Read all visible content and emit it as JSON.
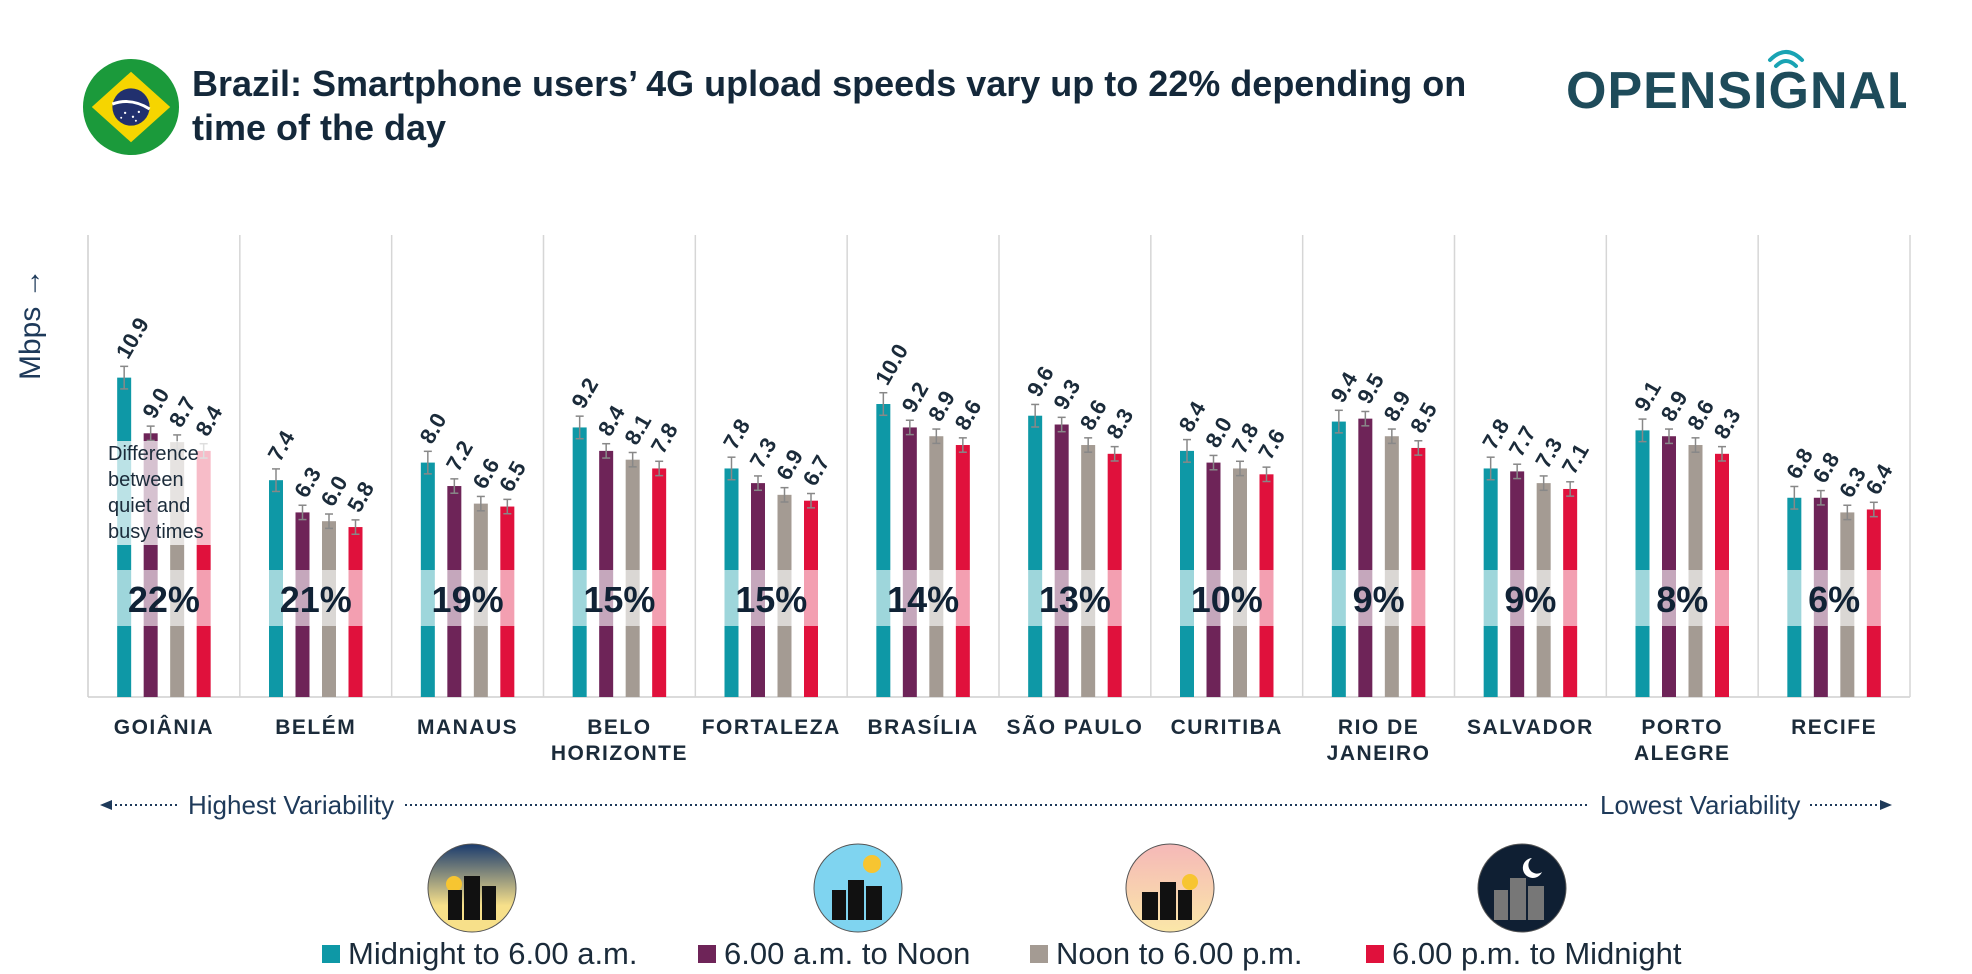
{
  "header": {
    "title": "Brazil: Smartphone users’ 4G upload speeds vary up to 22% depending on time of the day",
    "logo_text": "OPENSIGNAL"
  },
  "annotations": {
    "ylabel": "Mbps →",
    "note": "Difference between quiet and busy times",
    "highest": "Highest Variability",
    "lowest": "Lowest Variability"
  },
  "colors": {
    "midnight": "#0e98a6",
    "morning": "#6e2458",
    "afternoon": "#a49b93",
    "evening": "#e0113c"
  },
  "chart_data": {
    "type": "bar",
    "title": "Brazil: Smartphone users’ 4G upload speeds vary up to 22% depending on time of the day",
    "ylabel": "Mbps →",
    "ylim": [
      0,
      12.2
    ],
    "grid": false,
    "legend_position": "bottom",
    "categories": [
      {
        "label": "GOIÂNIA",
        "lines": [
          "GOIÂNIA"
        ]
      },
      {
        "label": "BELÉM",
        "lines": [
          "BELÉM"
        ]
      },
      {
        "label": "MANAUS",
        "lines": [
          "MANAUS"
        ]
      },
      {
        "label": "BELO HORIZONTE",
        "lines": [
          "BELO",
          "HORIZONTE"
        ]
      },
      {
        "label": "FORTALEZA",
        "lines": [
          "FORTALEZA"
        ]
      },
      {
        "label": "BRASÍLIA",
        "lines": [
          "BRASÍLIA"
        ]
      },
      {
        "label": "SÃO PAULO",
        "lines": [
          "SÃO PAULO"
        ]
      },
      {
        "label": "CURITIBA",
        "lines": [
          "CURITIBA"
        ]
      },
      {
        "label": "RIO DE JANEIRO",
        "lines": [
          "RIO DE",
          "JANEIRO"
        ]
      },
      {
        "label": "SALVADOR",
        "lines": [
          "SALVADOR"
        ]
      },
      {
        "label": "PORTO ALEGRE",
        "lines": [
          "PORTO",
          "ALEGRE"
        ]
      },
      {
        "label": "RECIFE",
        "lines": [
          "RECIFE"
        ]
      }
    ],
    "series": [
      {
        "name": "Midnight to 6.00 a.m.",
        "color": "#0e98a6",
        "values": [
          10.9,
          7.4,
          8.0,
          9.2,
          7.8,
          10.0,
          9.6,
          8.4,
          9.4,
          7.8,
          9.1,
          6.8
        ]
      },
      {
        "name": "6.00 a.m. to Noon",
        "color": "#6e2458",
        "values": [
          9.0,
          6.3,
          7.2,
          8.4,
          7.3,
          9.2,
          9.3,
          8.0,
          9.5,
          7.7,
          8.9,
          6.8
        ]
      },
      {
        "name": "Noon to 6.00 p.m.",
        "color": "#a49b93",
        "values": [
          8.7,
          6.0,
          6.6,
          8.1,
          6.9,
          8.9,
          8.6,
          7.8,
          8.9,
          7.3,
          8.6,
          6.3
        ]
      },
      {
        "name": "6.00 p.m. to Midnight",
        "color": "#e0113c",
        "values": [
          8.4,
          5.8,
          6.5,
          7.8,
          6.7,
          8.6,
          8.3,
          7.6,
          8.5,
          7.1,
          8.3,
          6.4
        ]
      }
    ],
    "differences": [
      "22%",
      "21%",
      "19%",
      "15%",
      "15%",
      "14%",
      "13%",
      "10%",
      "9%",
      "9%",
      "8%",
      "6%"
    ]
  },
  "legend": [
    {
      "label": "Midnight to 6.00 a.m.",
      "icon": "night-city-dawn-icon",
      "color": "#0e98a6"
    },
    {
      "label": "6.00 a.m. to Noon",
      "icon": "day-city-sun-icon",
      "color": "#6e2458"
    },
    {
      "label": "Noon to 6.00 p.m.",
      "icon": "afternoon-city-sunset-icon",
      "color": "#a49b93"
    },
    {
      "label": "6.00 p.m. to Midnight",
      "icon": "night-city-moon-icon",
      "color": "#e0113c"
    }
  ]
}
